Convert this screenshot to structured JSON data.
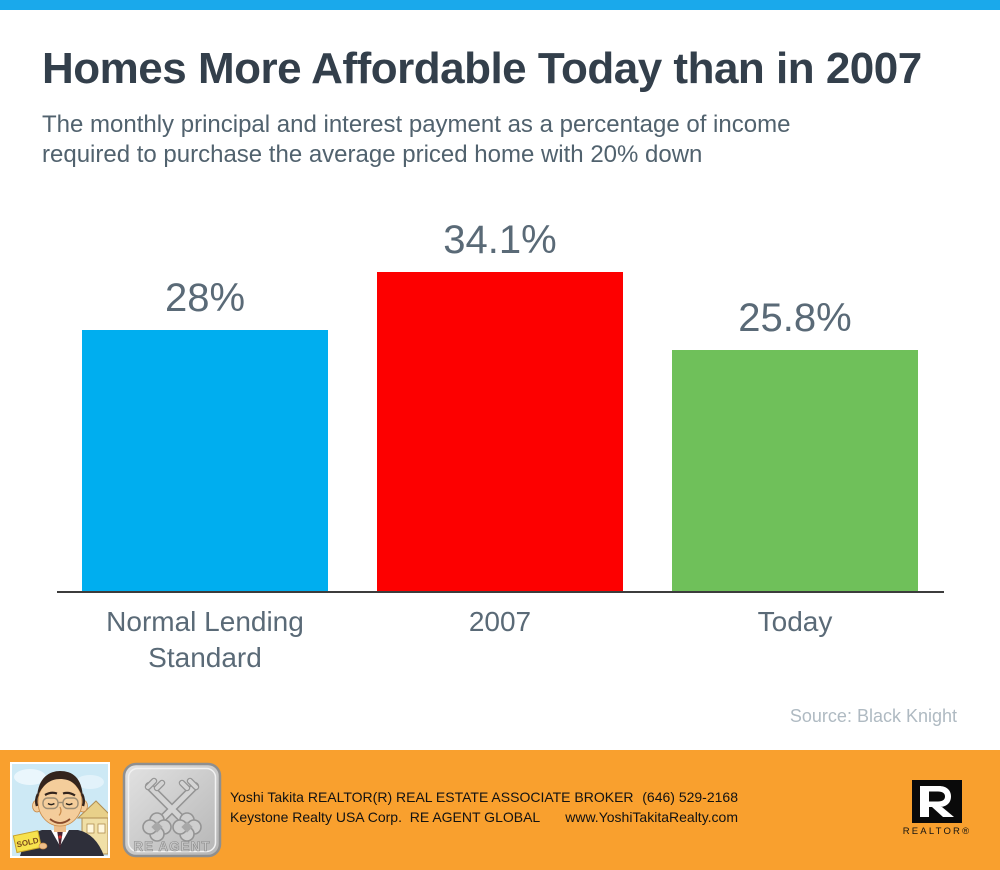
{
  "page": {
    "top_bar_color": "#1AA9EB",
    "background": "#FFFFFF"
  },
  "header": {
    "title": "Homes More Affordable Today than in 2007",
    "subtitle_line1": "The monthly principal and interest payment as a percentage of income",
    "subtitle_line2": "required to purchase the average priced home with 20% down"
  },
  "chart_data": {
    "type": "bar",
    "title": "Homes More Affordable Today than in 2007",
    "categories": [
      "Normal Lending Standard",
      "2007",
      "Today"
    ],
    "values": [
      28,
      34.1,
      25.8
    ],
    "value_labels": [
      "28%",
      "34.1%",
      "25.8%"
    ],
    "bar_colors": [
      "#00AEEF",
      "#FD0000",
      "#6FC05A"
    ],
    "xlabel": "",
    "ylabel": "",
    "ylim": [
      0,
      40
    ],
    "grid": false,
    "legend": false,
    "label_color": "#5A6A77",
    "source": "Source: Black Knight"
  },
  "footer": {
    "background": "#F9A02E",
    "agent_name_line": "Yoshi Takita REALTOR(R) REAL ESTATE ASSOCIATE BROKER",
    "company_line": "Keystone Realty USA Corp.  RE AGENT GLOBAL",
    "phone": "(646) 529-2168",
    "website": "www.YoshiTakitaRealty.com",
    "badge_label": "RE AGENT",
    "realtor_wordmark": "REALTOR®",
    "sold_sign_text": "SOLD"
  }
}
